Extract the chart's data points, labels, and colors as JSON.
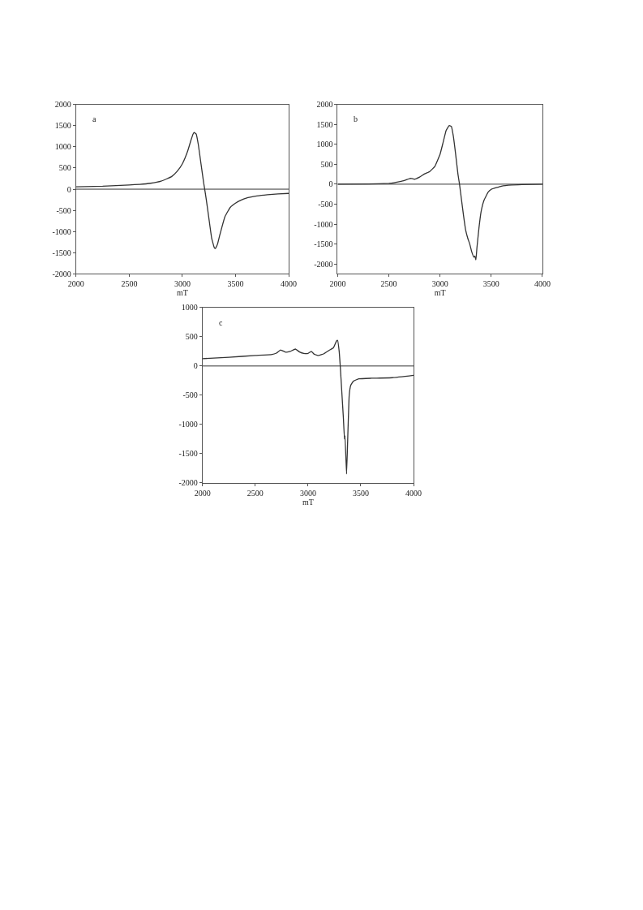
{
  "chart_data": [
    {
      "type": "line",
      "title": "a",
      "xlabel": "mT",
      "xlim": [
        2000,
        4000
      ],
      "xticks": [
        2000,
        2500,
        3000,
        3500,
        4000
      ],
      "ylim": [
        -2000,
        2000
      ],
      "yticks": [
        -2000,
        -1500,
        -1000,
        -500,
        0,
        500,
        1000,
        1500,
        2000
      ],
      "ref_lines": [
        {
          "axis": "y",
          "value": 0,
          "color": "#333333"
        }
      ],
      "series": [
        {
          "color": "#333333",
          "x": [
            2000,
            2250,
            2500,
            2600,
            2700,
            2800,
            2850,
            2900,
            2950,
            3000,
            3050,
            3080,
            3100,
            3110,
            3130,
            3150,
            3175,
            3200,
            3210,
            3225,
            3250,
            3275,
            3300,
            3310,
            3330,
            3350,
            3400,
            3450,
            3500,
            3550,
            3600,
            3700,
            3800,
            3900,
            4000
          ],
          "values": [
            55,
            70,
            100,
            115,
            140,
            190,
            240,
            300,
            420,
            600,
            900,
            1150,
            1300,
            1340,
            1300,
            1050,
            600,
            150,
            0,
            -250,
            -700,
            -1150,
            -1380,
            -1400,
            -1300,
            -1100,
            -650,
            -430,
            -330,
            -260,
            -210,
            -160,
            -130,
            -110,
            -100
          ]
        }
      ]
    },
    {
      "type": "line",
      "title": "b",
      "xlabel": "mT",
      "xlim": [
        2000,
        4000
      ],
      "xticks": [
        2000,
        2500,
        3000,
        3500,
        4000
      ],
      "ylim": [
        -2250,
        2000
      ],
      "yticks": [
        -2000,
        -1500,
        -1000,
        -500,
        0,
        500,
        1000,
        1500,
        2000
      ],
      "ref_lines": [
        {
          "axis": "y",
          "value": 0,
          "color": "#333333"
        }
      ],
      "series": [
        {
          "color": "#333333",
          "x": [
            2000,
            2300,
            2500,
            2550,
            2600,
            2650,
            2700,
            2720,
            2750,
            2800,
            2850,
            2900,
            2950,
            3000,
            3030,
            3060,
            3090,
            3110,
            3130,
            3150,
            3175,
            3190,
            3210,
            3230,
            3250,
            3270,
            3290,
            3310,
            3330,
            3340,
            3350,
            3360,
            3380,
            3400,
            3430,
            3470,
            3500,
            3600,
            3700,
            3800,
            4000
          ],
          "values": [
            0,
            5,
            20,
            35,
            60,
            90,
            140,
            145,
            125,
            180,
            260,
            320,
            450,
            750,
            1050,
            1350,
            1470,
            1450,
            1200,
            800,
            250,
            0,
            -400,
            -800,
            -1150,
            -1350,
            -1500,
            -1700,
            -1830,
            -1800,
            -1900,
            -1600,
            -1100,
            -700,
            -400,
            -200,
            -130,
            -50,
            -20,
            -10,
            0
          ]
        }
      ]
    },
    {
      "type": "line",
      "title": "c",
      "xlabel": "mT",
      "xlim": [
        2000,
        4000
      ],
      "xticks": [
        2000,
        2500,
        3000,
        3500,
        4000
      ],
      "ylim": [
        -2000,
        1000
      ],
      "yticks": [
        -2000,
        -1500,
        -1000,
        -500,
        0,
        500,
        1000
      ],
      "ref_lines": [
        {
          "axis": "y",
          "value": 0,
          "color": "#333333"
        }
      ],
      "series": [
        {
          "color": "#333333",
          "x": [
            2000,
            2250,
            2500,
            2650,
            2700,
            2740,
            2790,
            2830,
            2880,
            2920,
            2960,
            3000,
            3030,
            3060,
            3100,
            3150,
            3200,
            3240,
            3270,
            3280,
            3295,
            3305,
            3320,
            3335,
            3345,
            3350,
            3365,
            3375,
            3390,
            3405,
            3430,
            3480,
            3600,
            3800,
            4000
          ],
          "values": [
            125,
            150,
            180,
            195,
            220,
            275,
            235,
            250,
            290,
            240,
            215,
            215,
            250,
            200,
            180,
            210,
            270,
            310,
            430,
            440,
            250,
            0,
            -450,
            -900,
            -1250,
            -1200,
            -1850,
            -1300,
            -500,
            -330,
            -260,
            -220,
            -210,
            -200,
            -160
          ]
        }
      ]
    }
  ]
}
